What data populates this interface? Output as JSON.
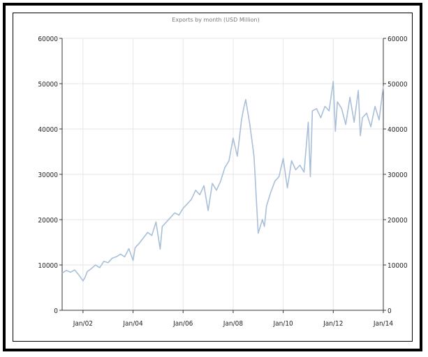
{
  "chart_data": {
    "type": "line",
    "title": "Exports by month (USD Million)",
    "xlabel": "",
    "ylabel": "",
    "ylim": [
      0,
      60000
    ],
    "xlim": [
      "2001-03",
      "2014-01"
    ],
    "y_ticks": [
      0,
      10000,
      20000,
      30000,
      40000,
      50000,
      60000
    ],
    "y_tick_labels": [
      "0",
      "10000",
      "20000",
      "30000",
      "40000",
      "50000",
      "60000"
    ],
    "x_ticks": [
      "2002-01",
      "2004-01",
      "2006-01",
      "2008-01",
      "2010-01",
      "2012-01",
      "2014-01"
    ],
    "x_tick_labels": [
      "Jan/02",
      "Jan/04",
      "Jan/06",
      "Jan/08",
      "Jan/10",
      "Jan/12",
      "Jan/14"
    ],
    "secondary_y_axis": true,
    "grid": true,
    "line_color": "#a9bfd9",
    "series": [
      {
        "x": [
          "2001-03",
          "2001-05",
          "2001-07",
          "2001-09",
          "2001-11",
          "2002-01",
          "2002-02",
          "2002-03",
          "2002-05",
          "2002-07",
          "2002-09",
          "2002-11",
          "2003-01",
          "2003-03",
          "2003-05",
          "2003-07",
          "2003-09",
          "2003-11",
          "2004-01",
          "2004-02",
          "2004-04",
          "2004-06",
          "2004-08",
          "2004-10",
          "2004-12",
          "2005-02",
          "2005-03",
          "2005-05",
          "2005-07",
          "2005-09",
          "2005-11",
          "2006-01",
          "2006-03",
          "2006-05",
          "2006-07",
          "2006-09",
          "2006-11",
          "2007-01",
          "2007-03",
          "2007-05",
          "2007-07",
          "2007-09",
          "2007-11",
          "2008-01",
          "2008-03",
          "2008-05",
          "2008-06",
          "2008-07",
          "2008-09",
          "2008-11",
          "2009-01",
          "2009-03",
          "2009-04",
          "2009-05",
          "2009-07",
          "2009-09",
          "2009-11",
          "2010-01",
          "2010-03",
          "2010-05",
          "2010-07",
          "2010-09",
          "2010-11",
          "2011-01",
          "2011-02",
          "2011-03",
          "2011-05",
          "2011-07",
          "2011-09",
          "2011-11",
          "2012-01",
          "2012-02",
          "2012-03",
          "2012-05",
          "2012-07",
          "2012-09",
          "2012-11",
          "2013-01",
          "2013-02",
          "2013-03",
          "2013-05",
          "2013-07",
          "2013-09",
          "2013-11",
          "2014-01"
        ],
        "values": [
          8200,
          8800,
          8400,
          8900,
          7800,
          6500,
          7300,
          8500,
          9200,
          10000,
          9400,
          10800,
          10500,
          11500,
          11800,
          12400,
          11800,
          13600,
          11000,
          13800,
          14800,
          16000,
          17200,
          16500,
          19500,
          13500,
          18500,
          19500,
          20500,
          21500,
          21000,
          22500,
          23500,
          24500,
          26500,
          25500,
          27500,
          22000,
          28000,
          26500,
          28500,
          31500,
          33000,
          38000,
          34000,
          42000,
          44500,
          46500,
          41000,
          34000,
          17000,
          20000,
          18500,
          23000,
          26000,
          28500,
          29500,
          33500,
          27000,
          33000,
          31000,
          32000,
          30500,
          41500,
          29500,
          44000,
          44500,
          42500,
          45000,
          44000,
          50500,
          39500,
          46000,
          44500,
          41000,
          47000,
          41500,
          48500,
          38500,
          42500,
          43500,
          40500,
          45000,
          42000,
          49500
        ]
      }
    ]
  }
}
